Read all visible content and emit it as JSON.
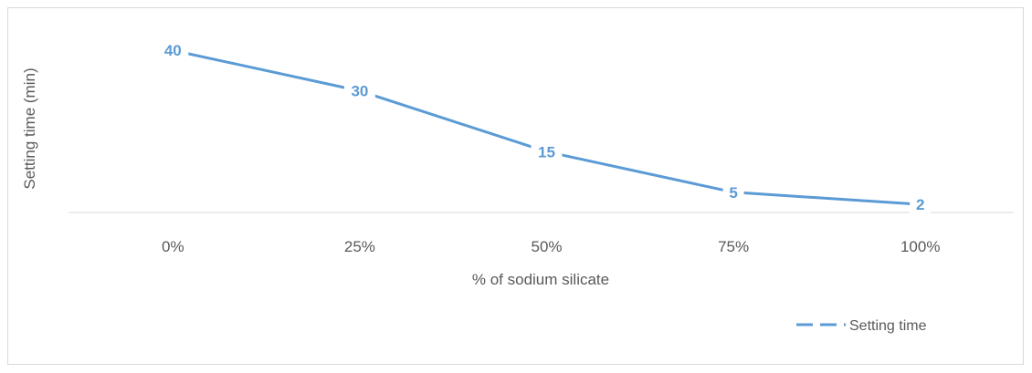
{
  "chart_data": {
    "type": "line",
    "categories": [
      "0%",
      "25%",
      "50%",
      "75%",
      "100%"
    ],
    "series": [
      {
        "name": "Setting time",
        "values": [
          40,
          30,
          15,
          5,
          2
        ]
      }
    ],
    "title": "",
    "xlabel": "% of sodium silicate",
    "ylabel": "Setting time (min)",
    "ylim": [
      0,
      45
    ],
    "grid": false,
    "legend": "bottom-right",
    "colors": {
      "series": "#5b9bd5",
      "axis": "#d9d9d9",
      "text": "#595959"
    }
  }
}
